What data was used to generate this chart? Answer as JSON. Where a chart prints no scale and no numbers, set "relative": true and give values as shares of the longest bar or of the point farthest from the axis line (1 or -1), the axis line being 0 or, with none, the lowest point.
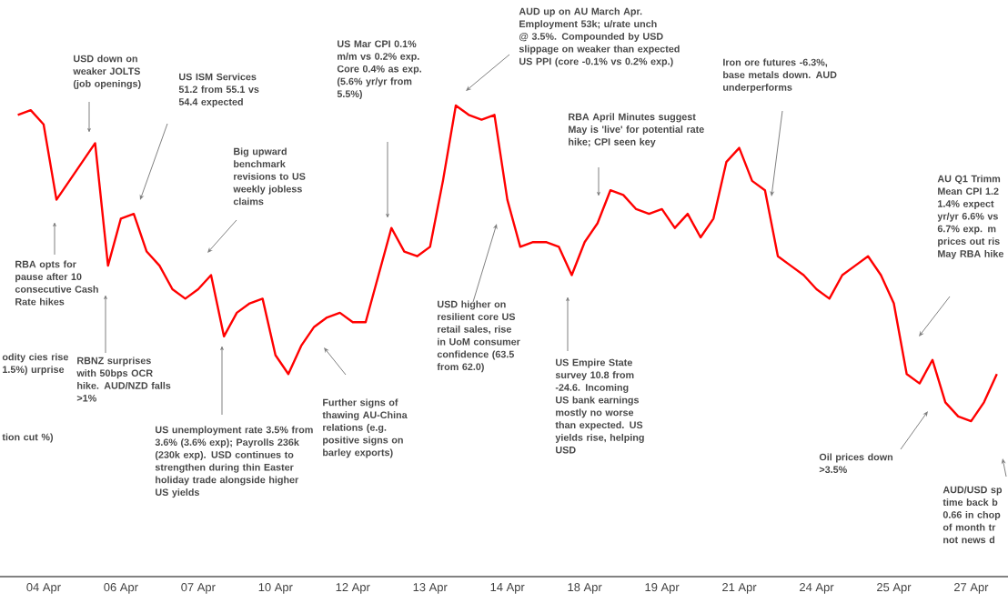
{
  "chart_data": {
    "type": "line",
    "relative": true,
    "categories": [
      null,
      null,
      "04 Apr",
      null,
      null,
      null,
      null,
      null,
      "06 Apr",
      null,
      null,
      null,
      null,
      null,
      "07 Apr",
      null,
      null,
      null,
      null,
      null,
      "10 Apr",
      null,
      null,
      null,
      null,
      null,
      "12 Apr",
      null,
      null,
      null,
      null,
      null,
      "13 Apr",
      null,
      null,
      null,
      null,
      null,
      "14 Apr",
      null,
      null,
      null,
      null,
      null,
      "18 Apr",
      null,
      null,
      null,
      null,
      null,
      "19 Apr",
      null,
      null,
      null,
      null,
      null,
      "21 Apr",
      null,
      null,
      null,
      null,
      null,
      "24 Apr",
      null,
      null,
      null,
      null,
      null,
      "25 Apr",
      null,
      null,
      null,
      null,
      null,
      "27 Apr",
      null,
      null
    ],
    "series": [
      {
        "color": "#ff0000",
        "values": [
          0.98,
          0.99,
          0.96,
          0.8,
          0.84,
          0.88,
          0.92,
          0.66,
          0.76,
          0.77,
          0.69,
          0.66,
          0.61,
          0.59,
          0.61,
          0.64,
          0.51,
          0.56,
          0.58,
          0.59,
          0.47,
          0.43,
          0.49,
          0.53,
          0.55,
          0.56,
          0.54,
          0.54,
          0.64,
          0.74,
          0.69,
          0.68,
          0.7,
          0.84,
          1,
          0.98,
          0.97,
          0.98,
          0.8,
          0.7,
          0.71,
          0.71,
          0.7,
          0.64,
          0.71,
          0.75,
          0.82,
          0.81,
          0.78,
          0.77,
          0.78,
          0.74,
          0.77,
          0.72,
          0.76,
          0.88,
          0.91,
          0.84,
          0.82,
          0.68,
          0.66,
          0.64,
          0.61,
          0.59,
          0.64,
          0.66,
          0.68,
          0.64,
          0.58,
          0.43,
          0.41,
          0.46,
          0.37,
          0.34,
          0.33,
          0.37,
          0.43
        ]
      }
    ],
    "annotations": [
      "USD down on weaker JOLTS (job openings)",
      "RBA opts for pause after 10 consecutive Cash Rate hikes",
      "odity cies rise 1.5%) urprise",
      "tion cut %)",
      "RBNZ surprises with 50bps OCR hike. AUD/NZD falls >1%",
      "US ISM Services 51.2 from 55.1 vs 54.4 expected",
      "Big upward benchmark revisions to US weekly jobless claims",
      "US unemployment rate 3.5% from 3.6% (3.6% exp); Payrolls 236k (230k exp). USD continues to strengthen during thin Easter holiday trade alongside higher US yields",
      "Further signs of thawing AU-China relations (e.g. positive signs on barley exports)",
      "US Mar CPI 0.1% m/m vs 0.2% exp. Core 0.4% as exp. (5.6% yr/yr from 5.5%)",
      "USD higher on resilient core US retail sales, rise in UoM consumer confidence (63.5 from 62.0)",
      "AUD up on AU March Apr. Employment 53k; u/rate unch @ 3.5%. Compounded by USD slippage on weaker than expected US PPI (core -0.1% vs 0.2% exp.)",
      "RBA April Minutes suggest May is 'live' for potential rate hike; CPI seen key",
      "US Empire State survey 10.8 from -24.6. Incoming US bank earnings mostly no worse than expected. US yields rise, helping USD",
      "Iron ore futures -6.3%, base metals down. AUD underperforms",
      "AU Q1 Trimm Mean CPI 1.2 1.4% expect yr/yr 6.6% vs 6.7% exp. m prices out ris May RBA hike",
      "Oil prices down >3.5%",
      "AUD/USD sp time back b 0.66 in chop of month tr not news d"
    ]
  }
}
